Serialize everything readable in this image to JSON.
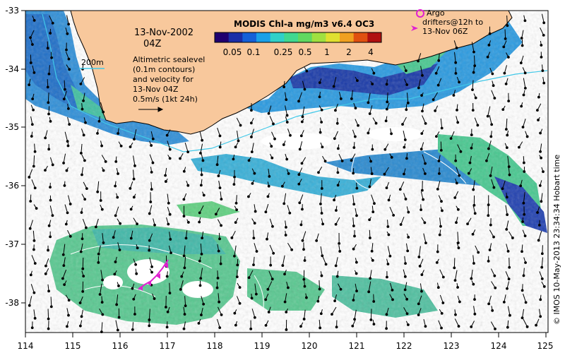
{
  "header": {
    "date": "13-Nov-2002",
    "time": "04Z"
  },
  "colorbar": {
    "title": "MODIS Chl-a mg/m3 v6.4 OC3",
    "tick_labels": [
      "0.05",
      "0.1",
      "0.25",
      "0.5",
      "1",
      "2",
      "4"
    ],
    "colors": [
      "#200070",
      "#1a2ea8",
      "#1560d8",
      "#1aa0e8",
      "#30d0c8",
      "#40d890",
      "#60d860",
      "#a0e040",
      "#e0e030",
      "#f0a020",
      "#e05010",
      "#b01010"
    ]
  },
  "legend": {
    "isobath_label": "200m",
    "isobath_color": "#40c8e8",
    "sealevel_text": [
      "Altimetric sealevel",
      "(0.1m contours)",
      "and velocity for",
      "13-Nov 04Z",
      "0.5m/s (1kt 24h)"
    ]
  },
  "argo": {
    "text": [
      "Argo",
      "drifters@12h to",
      "13-Nov 06Z"
    ],
    "color": "#e020d0"
  },
  "axes": {
    "x_ticks": [
      "114",
      "115",
      "116",
      "117",
      "118",
      "119",
      "120",
      "121",
      "122",
      "123",
      "124",
      "125"
    ],
    "y_ticks": [
      "-33",
      "-34",
      "-35",
      "-36",
      "-37",
      "-38"
    ],
    "xlim": [
      114,
      125
    ],
    "ylim": [
      -38.5,
      -33
    ]
  },
  "credit": "© IMOS 10-May-2013 23:34:34 Hobart time",
  "colors": {
    "land": "#f8c89c",
    "coast": "#000000",
    "contour": "#ffffff",
    "isobath": "#40c8e8"
  }
}
